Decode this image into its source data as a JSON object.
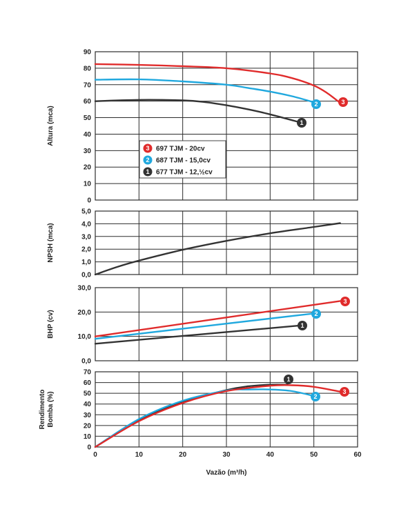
{
  "chart_data": {
    "type": "line",
    "xlabel": "Vazão (m³/h)",
    "x_ticks": [
      "0",
      "10",
      "20",
      "30",
      "40",
      "50",
      "60"
    ],
    "xlim": [
      0,
      60
    ],
    "models": [
      {
        "id": "3",
        "label": "697 TJM - 20cv",
        "color": "#e02b2b"
      },
      {
        "id": "2",
        "label": "687 TJM - 15,0cv",
        "color": "#20a8de"
      },
      {
        "id": "1",
        "label": "677 TJM - 12,½cv",
        "color": "#333333"
      }
    ],
    "panels": [
      {
        "key": "altura",
        "ylabel": [
          "Altura (mca)"
        ],
        "ylim": [
          0,
          90
        ],
        "y_ticks": [
          "0",
          "10",
          "20",
          "30",
          "40",
          "50",
          "60",
          "70",
          "80",
          "90"
        ],
        "series": [
          {
            "id": "3",
            "x": [
              0,
              10,
              20,
              30,
              40,
              45,
              50,
              53,
              56
            ],
            "y": [
              82.5,
              82,
              81.2,
              80,
              76.8,
              74,
              69.5,
              65,
              59
            ]
          },
          {
            "id": "2",
            "x": [
              0,
              10,
              20,
              30,
              35,
              40,
              45,
              50.5
            ],
            "y": [
              73,
              73.2,
              72,
              70,
              68,
              65.8,
              63,
              59
            ]
          },
          {
            "id": "1",
            "x": [
              0,
              10,
              20,
              25,
              30,
              35,
              40,
              47
            ],
            "y": [
              60,
              60.8,
              60.5,
              59.5,
              57.5,
              55,
              52,
              47
            ]
          }
        ]
      },
      {
        "key": "npsh",
        "ylabel": [
          "NPSH (mca)"
        ],
        "ylim": [
          0,
          5
        ],
        "y_ticks": [
          "0,0",
          "1,0",
          "2,0",
          "3,0",
          "4,0",
          "5,0"
        ],
        "series": [
          {
            "id": "npsh",
            "x": [
              0,
              5,
              10,
              20,
              30,
              40,
              50,
              56
            ],
            "y": [
              0,
              0.6,
              1.1,
              1.95,
              2.65,
              3.25,
              3.75,
              4.05
            ]
          }
        ]
      },
      {
        "key": "bhp",
        "ylabel": [
          "BHP (cv)"
        ],
        "ylim": [
          0,
          30
        ],
        "y_ticks": [
          "0,0",
          "10,0",
          "20,0",
          "30,0"
        ],
        "series": [
          {
            "id": "3",
            "x": [
              0,
              56
            ],
            "y": [
              10,
              24.5
            ]
          },
          {
            "id": "2",
            "x": [
              0,
              50.5
            ],
            "y": [
              9,
              19.5
            ]
          },
          {
            "id": "1",
            "x": [
              0,
              47
            ],
            "y": [
              7,
              14.5
            ]
          }
        ]
      },
      {
        "key": "rendimento",
        "ylabel": [
          "Rendimento",
          "Bomba (%)"
        ],
        "ylim": [
          0,
          70
        ],
        "y_ticks": [
          "0",
          "10",
          "20",
          "30",
          "40",
          "50",
          "60",
          "70"
        ],
        "series": [
          {
            "id": "1",
            "x": [
              0,
              10,
              20,
              30,
              35,
              40,
              44
            ],
            "y": [
              0,
              25,
              42,
              53,
              56.5,
              58,
              58
            ]
          },
          {
            "id": "2",
            "x": [
              0,
              10,
              20,
              30,
              35,
              40,
              45,
              50.5
            ],
            "y": [
              0,
              26,
              43,
              52.5,
              53.5,
              53.5,
              52,
              47
            ]
          },
          {
            "id": "3",
            "x": [
              0,
              10,
              20,
              30,
              40,
              45,
              50,
              56
            ],
            "y": [
              0,
              24,
              41,
              52,
              57,
              57.5,
              56,
              51.5
            ]
          }
        ]
      }
    ]
  }
}
